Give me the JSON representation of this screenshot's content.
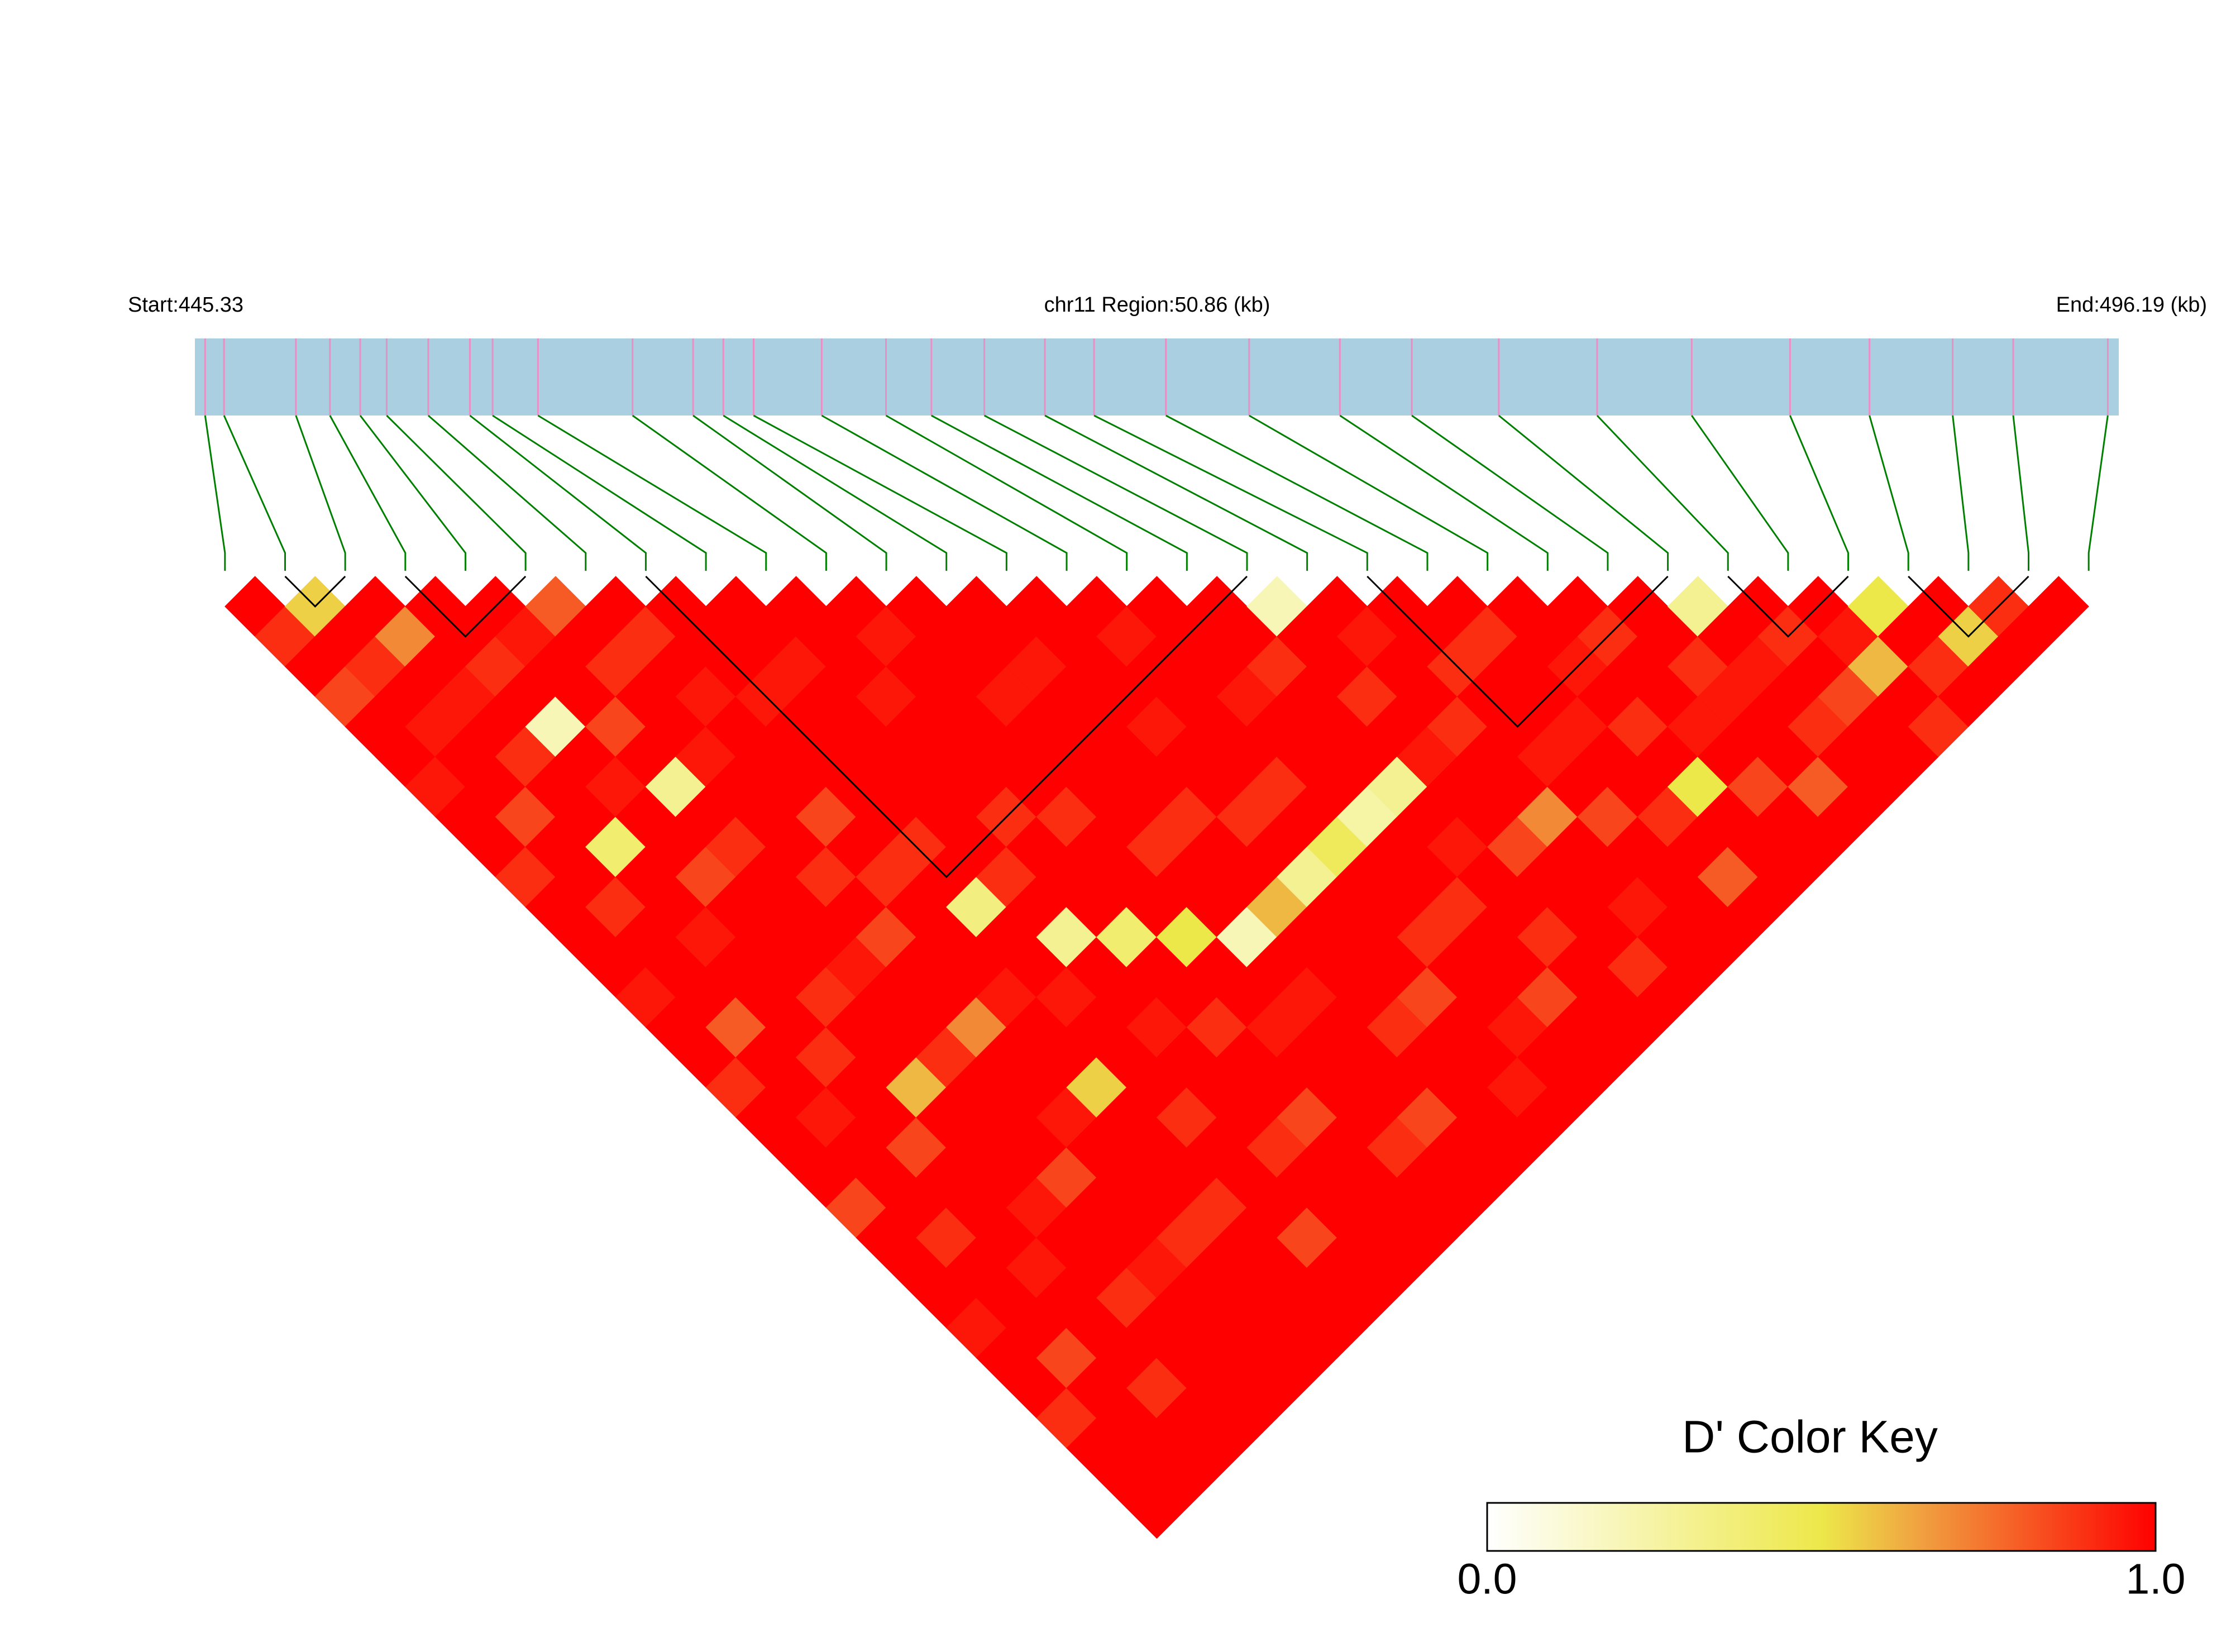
{
  "chart_data": {
    "type": "ld_heatmap",
    "start_label": "Start:445.33",
    "region_label": "chr11 Region:50.86 (kb)",
    "end_label": "End:496.19 (kb)",
    "xlim": [
      445.33,
      496.19
    ],
    "bar_color": "#a9cfe1",
    "snp_color": "#e98fc6",
    "link_color": "#008000",
    "block_color": "#000000",
    "positions": [
      445.6,
      446.1,
      448.0,
      448.9,
      449.7,
      450.4,
      451.5,
      452.6,
      453.2,
      454.4,
      456.9,
      458.5,
      459.3,
      460.1,
      461.9,
      463.6,
      464.8,
      466.2,
      467.8,
      469.1,
      471.0,
      473.2,
      475.6,
      477.5,
      479.8,
      482.4,
      484.9,
      487.5,
      489.6,
      491.8,
      493.4,
      495.9
    ],
    "blocks": [
      [
        1,
        2
      ],
      [
        3,
        5
      ],
      [
        7,
        17
      ],
      [
        19,
        24
      ],
      [
        25,
        27
      ],
      [
        28,
        30
      ]
    ],
    "dprime": [
      [
        1,
        0.9,
        1,
        0.85,
        1,
        1,
        0.95,
        1,
        1,
        0.9,
        1,
        1,
        1,
        0.95,
        1,
        1,
        0.9,
        1,
        1,
        1,
        0.85,
        1,
        1,
        1,
        0.95,
        1,
        1,
        0.9,
        1,
        1,
        1
      ],
      [
        0.55,
        1,
        0.9,
        1,
        0.95,
        1,
        1,
        0.85,
        1,
        1,
        0.9,
        1,
        1,
        1,
        0.8,
        1,
        1,
        0.95,
        1,
        1,
        1,
        0.9,
        1,
        1,
        1,
        0.85,
        1,
        1,
        1,
        1
      ],
      [
        1,
        0.7,
        1,
        0.95,
        1,
        0.9,
        1,
        1,
        0.4,
        1,
        1,
        0.95,
        1,
        1,
        1,
        0.9,
        1,
        1,
        0.85,
        1,
        1,
        1,
        0.95,
        1,
        1,
        1,
        0.9,
        1,
        1
      ],
      [
        1,
        1,
        0.9,
        1,
        0.2,
        1,
        0.95,
        1,
        1,
        0.85,
        1,
        1,
        1,
        0.9,
        1,
        1,
        0.6,
        1,
        1,
        1,
        0.95,
        1,
        1,
        0.9,
        1,
        1,
        1,
        1
      ],
      [
        1,
        0.95,
        1,
        1,
        0.85,
        1,
        0.3,
        1,
        0.9,
        1,
        1,
        1,
        0.95,
        1,
        1,
        0.9,
        1,
        1,
        1,
        0.85,
        1,
        1,
        0.95,
        1,
        1,
        1,
        1
      ],
      [
        0.8,
        1,
        0.9,
        1,
        1,
        0.95,
        1,
        1,
        1,
        0.9,
        1,
        0.85,
        1,
        1,
        0.7,
        1,
        1,
        0.95,
        1,
        1,
        1,
        0.9,
        1,
        1,
        1,
        1
      ],
      [
        1,
        0.9,
        1,
        0.95,
        1,
        1,
        1,
        0.85,
        1,
        0.9,
        1,
        1,
        1,
        0.95,
        1,
        1,
        0.55,
        1,
        1,
        1,
        0.9,
        1,
        1,
        1,
        1
      ],
      [
        1,
        1,
        1,
        0.95,
        1,
        1,
        1,
        1,
        0.9,
        1,
        0.35,
        1,
        1,
        0.95,
        1,
        1,
        1,
        0.9,
        1,
        1,
        1,
        0.85,
        1,
        1
      ],
      [
        1,
        1,
        0.95,
        1,
        1,
        1,
        1,
        1,
        1,
        0.9,
        1,
        0.3,
        1,
        1,
        0.95,
        1,
        1,
        1,
        0.9,
        1,
        1,
        1,
        1
      ],
      [
        1,
        1,
        1,
        0.95,
        1,
        1,
        1,
        0.9,
        1,
        1,
        1,
        0.4,
        1,
        1,
        0.9,
        1,
        1,
        0.85,
        1,
        1,
        1,
        1
      ],
      [
        1,
        0.95,
        1,
        1,
        1,
        1,
        1,
        0.9,
        1,
        1,
        1,
        0.5,
        1,
        1,
        0.95,
        1,
        1,
        1,
        0.9,
        1,
        1
      ],
      [
        1,
        1,
        1,
        0.95,
        1,
        1,
        1,
        1,
        0.9,
        1,
        1,
        0.2,
        1,
        0.95,
        1,
        1,
        1,
        0.85,
        1,
        1
      ],
      [
        1,
        1,
        0.95,
        1,
        1,
        1,
        1,
        0.9,
        1,
        1,
        0.6,
        1,
        1,
        1,
        0.9,
        1,
        1,
        1,
        1
      ],
      [
        1,
        1,
        1,
        1,
        0.95,
        1,
        1,
        0.9,
        1,
        0.3,
        1,
        1,
        1,
        0.85,
        1,
        1,
        0.95,
        1
      ],
      [
        1,
        0.95,
        1,
        1,
        1,
        1,
        0.9,
        1,
        0.45,
        1,
        1,
        0.9,
        1,
        1,
        0.95,
        1,
        1
      ],
      [
        1,
        1,
        1,
        0.95,
        1,
        1,
        1,
        0.25,
        1,
        1,
        0.9,
        1,
        1,
        0.85,
        1,
        1
      ],
      [
        1,
        1,
        0.9,
        1,
        1,
        1,
        0.3,
        1,
        0.95,
        1,
        1,
        0.9,
        1,
        1,
        1
      ],
      [
        0.2,
        1,
        1,
        0.9,
        1,
        0.95,
        1,
        1,
        0.85,
        1,
        1,
        1,
        0.9,
        1
      ],
      [
        1,
        0.95,
        1,
        1,
        0.9,
        1,
        1,
        0.7,
        1,
        1,
        0.95,
        1,
        1
      ],
      [
        1,
        1,
        0.9,
        1,
        1,
        0.95,
        1,
        0.85,
        1,
        1,
        1,
        1
      ],
      [
        1,
        0.9,
        1,
        1,
        0.95,
        1,
        1,
        0.9,
        1,
        0.8,
        1
      ],
      [
        1,
        1,
        0.95,
        1,
        0.9,
        1,
        0.5,
        1,
        1,
        1
      ],
      [
        1,
        0.9,
        1,
        1,
        0.95,
        1,
        0.85,
        1,
        1
      ],
      [
        1,
        1,
        0.9,
        0.95,
        1,
        1,
        0.8,
        1
      ],
      [
        0.3,
        1,
        0.95,
        1,
        0.9,
        1,
        1
      ],
      [
        1,
        0.9,
        1,
        0.85,
        1,
        1
      ],
      [
        1,
        0.95,
        0.6,
        1,
        0.9
      ],
      [
        0.5,
        1,
        0.9,
        1
      ],
      [
        1,
        0.55,
        1
      ],
      [
        0.9,
        1
      ],
      [
        1
      ]
    ],
    "color_key": {
      "title": "D' Color Key",
      "ticks": [
        {
          "value": 0,
          "label": "0.0"
        },
        {
          "value": 1,
          "label": "1.0"
        }
      ]
    }
  }
}
